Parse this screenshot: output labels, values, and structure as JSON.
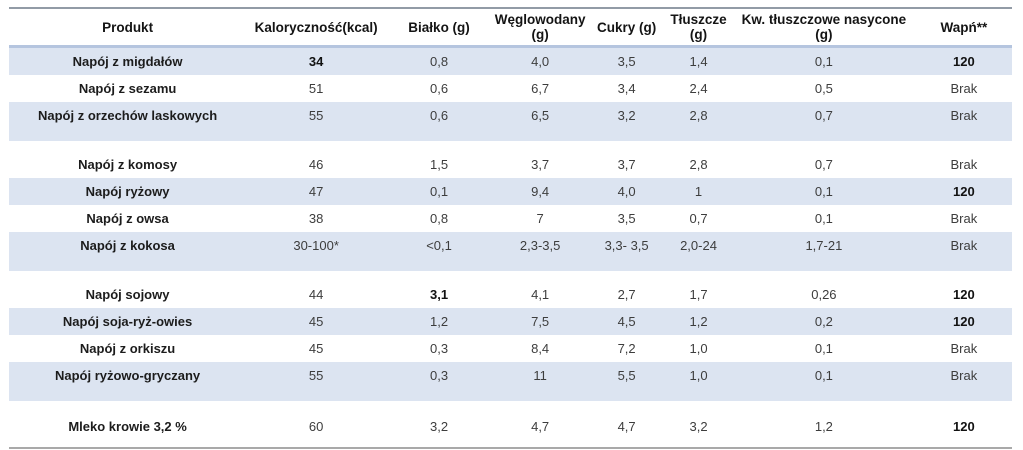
{
  "colors": {
    "row_shade": "#dce4f1",
    "header_top_border": "#929ba6",
    "header_bottom_border": "#b5c5df",
    "table_bottom_border": "#a9a9a9",
    "body_text": "#3d3d3d",
    "bold_text": "#121212"
  },
  "table": {
    "columns": [
      "Produkt",
      "Kaloryczność(kcal)",
      "Białko (g)",
      "Węglowodany (g)",
      "Cukry (g)",
      "Tłuszcze (g)",
      "Kw. tłuszczowe nasycone (g)",
      "Wapń**"
    ],
    "groups": [
      {
        "rows": [
          {
            "cells": [
              "Napój z migdałów",
              "34",
              "0,8",
              "4,0",
              "3,5",
              "1,4",
              "0,1",
              "120"
            ],
            "bold": [
              1,
              7
            ]
          },
          {
            "cells": [
              "Napój z sezamu",
              "51",
              "0,6",
              "6,7",
              "3,4",
              "2,4",
              "0,5",
              "Brak"
            ],
            "bold": []
          },
          {
            "cells": [
              "Napój z orzechów laskowych",
              "55",
              "0,6",
              "6,5",
              "3,2",
              "2,8",
              "0,7",
              "Brak"
            ],
            "bold": []
          }
        ]
      },
      {
        "rows": [
          {
            "cells": [
              "Napój z komosy",
              "46",
              "1,5",
              "3,7",
              "3,7",
              "2,8",
              "0,7",
              "Brak"
            ],
            "bold": []
          },
          {
            "cells": [
              "Napój ryżowy",
              "47",
              "0,1",
              "9,4",
              "4,0",
              "1",
              "0,1",
              "120"
            ],
            "bold": [
              7
            ]
          },
          {
            "cells": [
              "Napój z owsa",
              "38",
              "0,8",
              "7",
              "3,5",
              "0,7",
              "0,1",
              "Brak"
            ],
            "bold": []
          },
          {
            "cells": [
              "Napój z kokosa",
              "30-100*",
              "<0,1",
              "2,3-3,5",
              "3,3- 3,5",
              "2,0-24",
              "1,7-21",
              "Brak"
            ],
            "bold": []
          }
        ]
      },
      {
        "rows": [
          {
            "cells": [
              "Napój sojowy",
              "44",
              "3,1",
              "4,1",
              "2,7",
              "1,7",
              "0,26",
              "120"
            ],
            "bold": [
              2,
              7
            ]
          },
          {
            "cells": [
              "Napój soja-ryż-owies",
              "45",
              "1,2",
              "7,5",
              "4,5",
              "1,2",
              "0,2",
              "120"
            ],
            "bold": [
              7
            ]
          },
          {
            "cells": [
              "Napój z orkiszu",
              "45",
              "0,3",
              "8,4",
              "7,2",
              "1,0",
              "0,1",
              "Brak"
            ],
            "bold": []
          },
          {
            "cells": [
              "Napój ryżowo-gryczany",
              "55",
              "0,3",
              "11",
              "5,5",
              "1,0",
              "0,1",
              "Brak"
            ],
            "bold": []
          }
        ]
      },
      {
        "rows": [
          {
            "cells": [
              "Mleko krowie 3,2 %",
              "60",
              "3,2",
              "4,7",
              "4,7",
              "3,2",
              "1,2",
              "120"
            ],
            "bold": [
              7
            ]
          }
        ]
      }
    ]
  },
  "chart_data": {
    "type": "table",
    "title": "",
    "columns": [
      "Produkt",
      "Kaloryczność(kcal)",
      "Białko (g)",
      "Węglowodany (g)",
      "Cukry (g)",
      "Tłuszcze (g)",
      "Kw. tłuszczowe nasycone (g)",
      "Wapń**"
    ],
    "rows": [
      [
        "Napój z migdałów",
        "34",
        "0,8",
        "4,0",
        "3,5",
        "1,4",
        "0,1",
        "120"
      ],
      [
        "Napój z sezamu",
        "51",
        "0,6",
        "6,7",
        "3,4",
        "2,4",
        "0,5",
        "Brak"
      ],
      [
        "Napój z orzechów laskowych",
        "55",
        "0,6",
        "6,5",
        "3,2",
        "2,8",
        "0,7",
        "Brak"
      ],
      [
        "Napój z komosy",
        "46",
        "1,5",
        "3,7",
        "3,7",
        "2,8",
        "0,7",
        "Brak"
      ],
      [
        "Napój ryżowy",
        "47",
        "0,1",
        "9,4",
        "4,0",
        "1",
        "0,1",
        "120"
      ],
      [
        "Napój z owsa",
        "38",
        "0,8",
        "7",
        "3,5",
        "0,7",
        "0,1",
        "Brak"
      ],
      [
        "Napój z kokosa",
        "30-100*",
        "<0,1",
        "2,3-3,5",
        "3,3- 3,5",
        "2,0-24",
        "1,7-21",
        "Brak"
      ],
      [
        "Napój sojowy",
        "44",
        "3,1",
        "4,1",
        "2,7",
        "1,7",
        "0,26",
        "120"
      ],
      [
        "Napój soja-ryż-owies",
        "45",
        "1,2",
        "7,5",
        "4,5",
        "1,2",
        "0,2",
        "120"
      ],
      [
        "Napój z orkiszu",
        "45",
        "0,3",
        "8,4",
        "7,2",
        "1,0",
        "0,1",
        "Brak"
      ],
      [
        "Napój ryżowo-gryczany",
        "55",
        "0,3",
        "11",
        "5,5",
        "1,0",
        "0,1",
        "Brak"
      ],
      [
        "Mleko krowie 3,2 %",
        "60",
        "3,2",
        "4,7",
        "4,7",
        "3,2",
        "1,2",
        "120"
      ]
    ],
    "layout_hints": {
      "striped": "alternating light-blue / white, restarting pattern preserved globally",
      "group_breaks_after_rows": [
        3,
        7,
        11
      ],
      "bold_cells_note": "product names bold; calcium value 120 bold; 34 (migdałów kcal) and 3,1 (sojowy białko) bold"
    }
  }
}
